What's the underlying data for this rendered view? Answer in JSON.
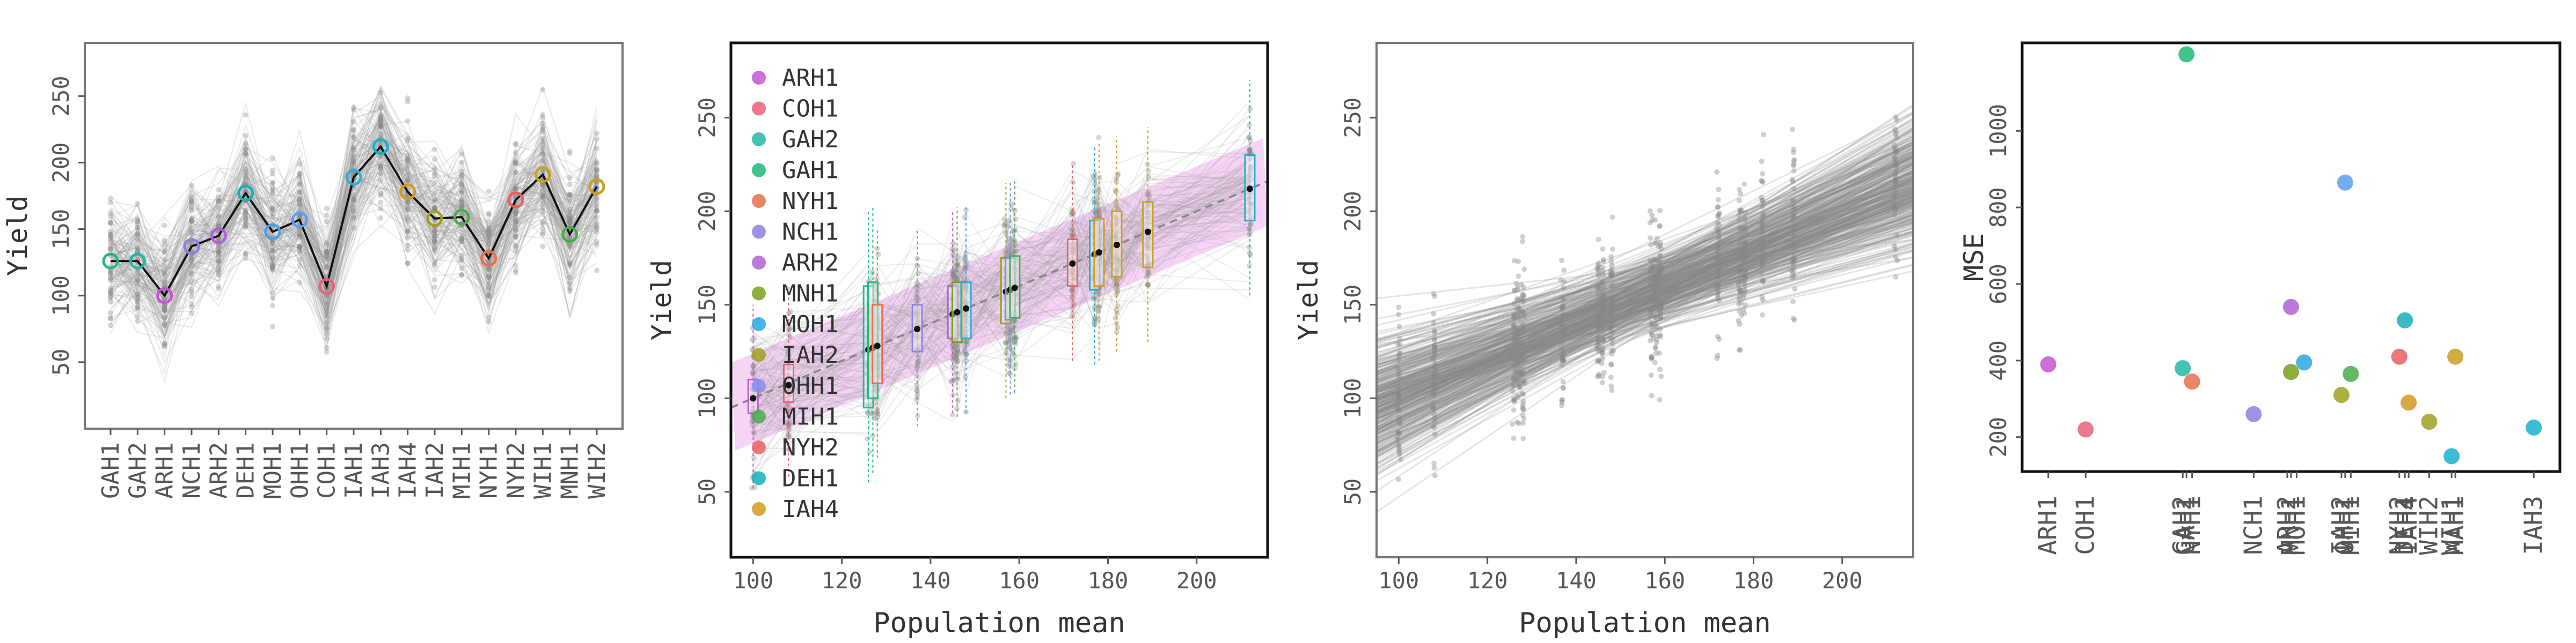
{
  "chart_data": [
    {
      "type": "line",
      "panel": "a",
      "xlabel": "",
      "ylabel": "Yield",
      "ylim": [
        0,
        290
      ],
      "yticks": [
        50,
        100,
        150,
        200,
        250
      ],
      "grid": false,
      "categories": [
        "GAH1",
        "GAH2",
        "ARH1",
        "NCH1",
        "ARH2",
        "DEH1",
        "MOH1",
        "OHH1",
        "COH1",
        "IAH1",
        "IAH3",
        "IAH4",
        "IAH2",
        "MIH1",
        "NYH1",
        "NYH2",
        "WIH1",
        "MNH1",
        "WIH2"
      ],
      "series": [
        {
          "values": [
            126,
            126,
            100,
            137,
            145,
            177,
            148,
            157,
            107,
            189,
            212,
            178,
            158,
            159,
            128,
            172,
            191,
            146,
            182
          ]
        }
      ],
      "point_colors": [
        "#1dbb77",
        "#22b8a8",
        "#c653d0",
        "#8f80e0",
        "#b061d4",
        "#14b0bc",
        "#4aa0e8",
        "#5b9ff0",
        "#e8607a",
        "#2eaedd",
        "#1ab0cc",
        "#d49a22",
        "#a0a020",
        "#4aaa4a",
        "#e87050",
        "#e86060",
        "#c8a020",
        "#4aaa4a",
        "#c8a020"
      ]
    },
    {
      "type": "scatter",
      "panel": "b",
      "xlabel": "Population mean",
      "ylabel": "Yield",
      "xlim": [
        95,
        216
      ],
      "ylim": [
        15,
        290
      ],
      "xticks": [
        100,
        120,
        140,
        160,
        180,
        200
      ],
      "yticks": [
        50,
        100,
        150,
        200,
        250
      ],
      "legend_placement": "top-left",
      "legend": [
        {
          "name": "ARH1",
          "color": "#c653d0"
        },
        {
          "name": "COH1",
          "color": "#e8607a"
        },
        {
          "name": "GAH2",
          "color": "#22b8a8"
        },
        {
          "name": "GAH1",
          "color": "#1dbb77"
        },
        {
          "name": "NYH1",
          "color": "#e87050"
        },
        {
          "name": "NCH1",
          "color": "#8f80e0"
        },
        {
          "name": "ARH2",
          "color": "#b061d4"
        },
        {
          "name": "MNH1",
          "color": "#7aa020"
        },
        {
          "name": "MOH1",
          "color": "#2aa8e0"
        },
        {
          "name": "IAH2",
          "color": "#a0a020"
        },
        {
          "name": "OHH1",
          "color": "#8090f0"
        },
        {
          "name": "MIH1",
          "color": "#4aaa4a"
        },
        {
          "name": "NYH2",
          "color": "#e86060"
        },
        {
          "name": "DEH1",
          "color": "#14b0bc"
        },
        {
          "name": "IAH4",
          "color": "#d49a22"
        }
      ],
      "boxes": [
        {
          "x": 100,
          "q1": 92,
          "q3": 110,
          "median": 100,
          "color": "#c653d0"
        },
        {
          "x": 108,
          "q1": 98,
          "q3": 118,
          "median": 107,
          "color": "#e8607a"
        },
        {
          "x": 126,
          "q1": 95,
          "q3": 160,
          "median": 126,
          "color": "#22b8a8"
        },
        {
          "x": 127,
          "q1": 100,
          "q3": 162,
          "median": 127,
          "color": "#1dbb77"
        },
        {
          "x": 128,
          "q1": 108,
          "q3": 150,
          "median": 128,
          "color": "#e87050"
        },
        {
          "x": 137,
          "q1": 125,
          "q3": 150,
          "median": 137,
          "color": "#8f80e0"
        },
        {
          "x": 145,
          "q1": 132,
          "q3": 160,
          "median": 145,
          "color": "#b061d4"
        },
        {
          "x": 146,
          "q1": 130,
          "q3": 162,
          "median": 146,
          "color": "#7aa020"
        },
        {
          "x": 148,
          "q1": 132,
          "q3": 162,
          "median": 148,
          "color": "#2aa8e0"
        },
        {
          "x": 157,
          "q1": 140,
          "q3": 175,
          "median": 157,
          "color": "#a0a020"
        },
        {
          "x": 158,
          "q1": 142,
          "q3": 175,
          "median": 158,
          "color": "#8090f0"
        },
        {
          "x": 159,
          "q1": 143,
          "q3": 176,
          "median": 159,
          "color": "#4aaa4a"
        },
        {
          "x": 172,
          "q1": 160,
          "q3": 185,
          "median": 172,
          "color": "#e86060"
        },
        {
          "x": 177,
          "q1": 158,
          "q3": 195,
          "median": 177,
          "color": "#14b0bc"
        },
        {
          "x": 178,
          "q1": 160,
          "q3": 196,
          "median": 178,
          "color": "#d49a22"
        },
        {
          "x": 182,
          "q1": 165,
          "q3": 200,
          "median": 182,
          "color": "#c8a020"
        },
        {
          "x": 189,
          "q1": 170,
          "q3": 205,
          "median": 189,
          "color": "#c8a020"
        },
        {
          "x": 212,
          "q1": 195,
          "q3": 230,
          "median": 212,
          "color": "#1ab0cc"
        }
      ],
      "reference_line": {
        "x": [
          95,
          216
        ],
        "y": [
          95,
          216
        ]
      }
    },
    {
      "type": "line",
      "panel": "c",
      "xlabel": "Population mean",
      "ylabel": "Yield",
      "xlim": [
        95,
        216
      ],
      "ylim": [
        15,
        290
      ],
      "xticks": [
        100,
        120,
        140,
        160,
        180,
        200
      ],
      "yticks": [
        50,
        100,
        150,
        200,
        250
      ],
      "environment_means": [
        100,
        108,
        126,
        127,
        128,
        137,
        145,
        146,
        148,
        157,
        158,
        159,
        172,
        177,
        178,
        182,
        189,
        212
      ]
    },
    {
      "type": "scatter",
      "panel": "d",
      "xlabel": "",
      "ylabel": "MSE",
      "ylim": [
        110,
        1230
      ],
      "yticks": [
        200,
        400,
        600,
        800,
        1000
      ],
      "xticks": [
        {
          "label": "ARH1",
          "x": 1
        },
        {
          "label": "COH1",
          "x": 2
        },
        {
          "label": "GAH2",
          "x": 4.6
        },
        {
          "label": "GAH1",
          "x": 4.7
        },
        {
          "label": "NYH1",
          "x": 4.85
        },
        {
          "label": "NCH1",
          "x": 6.5
        },
        {
          "label": "ARH2",
          "x": 7.4
        },
        {
          "label": "MNH1",
          "x": 7.5
        },
        {
          "label": "MOH1",
          "x": 7.65
        },
        {
          "label": "IAH2",
          "x": 8.85
        },
        {
          "label": "OHH1",
          "x": 8.95
        },
        {
          "label": "MIH1",
          "x": 9.1
        },
        {
          "label": "NYH2",
          "x": 10.4
        },
        {
          "label": "DEH1",
          "x": 10.55
        },
        {
          "label": "IAH4",
          "x": 10.65
        },
        {
          "label": "WIH2",
          "x": 11.2
        },
        {
          "label": "WIH1",
          "x": 11.8
        },
        {
          "label": "MAH1",
          "x": 11.9
        },
        {
          "label": "IAH3",
          "x": 14
        }
      ],
      "points": [
        {
          "x": 1,
          "y": 390,
          "color": "#c653d0"
        },
        {
          "x": 2,
          "y": 220,
          "color": "#e8607a"
        },
        {
          "x": 4.6,
          "y": 380,
          "color": "#22b8a8"
        },
        {
          "x": 4.7,
          "y": 1200,
          "color": "#1dbb77"
        },
        {
          "x": 4.85,
          "y": 345,
          "color": "#e87050"
        },
        {
          "x": 6.5,
          "y": 260,
          "color": "#8f80e0"
        },
        {
          "x": 7.5,
          "y": 540,
          "color": "#b061d4"
        },
        {
          "x": 7.5,
          "y": 370,
          "color": "#7aa020"
        },
        {
          "x": 7.85,
          "y": 395,
          "color": "#2aa8e0"
        },
        {
          "x": 8.85,
          "y": 310,
          "color": "#a0a020"
        },
        {
          "x": 8.95,
          "y": 865,
          "color": "#5b9ff0"
        },
        {
          "x": 9.1,
          "y": 365,
          "color": "#4aaa4a"
        },
        {
          "x": 10.4,
          "y": 410,
          "color": "#e86060"
        },
        {
          "x": 10.55,
          "y": 505,
          "color": "#14b0bc"
        },
        {
          "x": 10.65,
          "y": 290,
          "color": "#d49a22"
        },
        {
          "x": 11.2,
          "y": 240,
          "color": "#a0a020"
        },
        {
          "x": 11.8,
          "y": 150,
          "color": "#1ab0cc"
        },
        {
          "x": 11.9,
          "y": 410,
          "color": "#c8a020"
        },
        {
          "x": 14,
          "y": 225,
          "color": "#1ab0cc"
        }
      ]
    }
  ]
}
